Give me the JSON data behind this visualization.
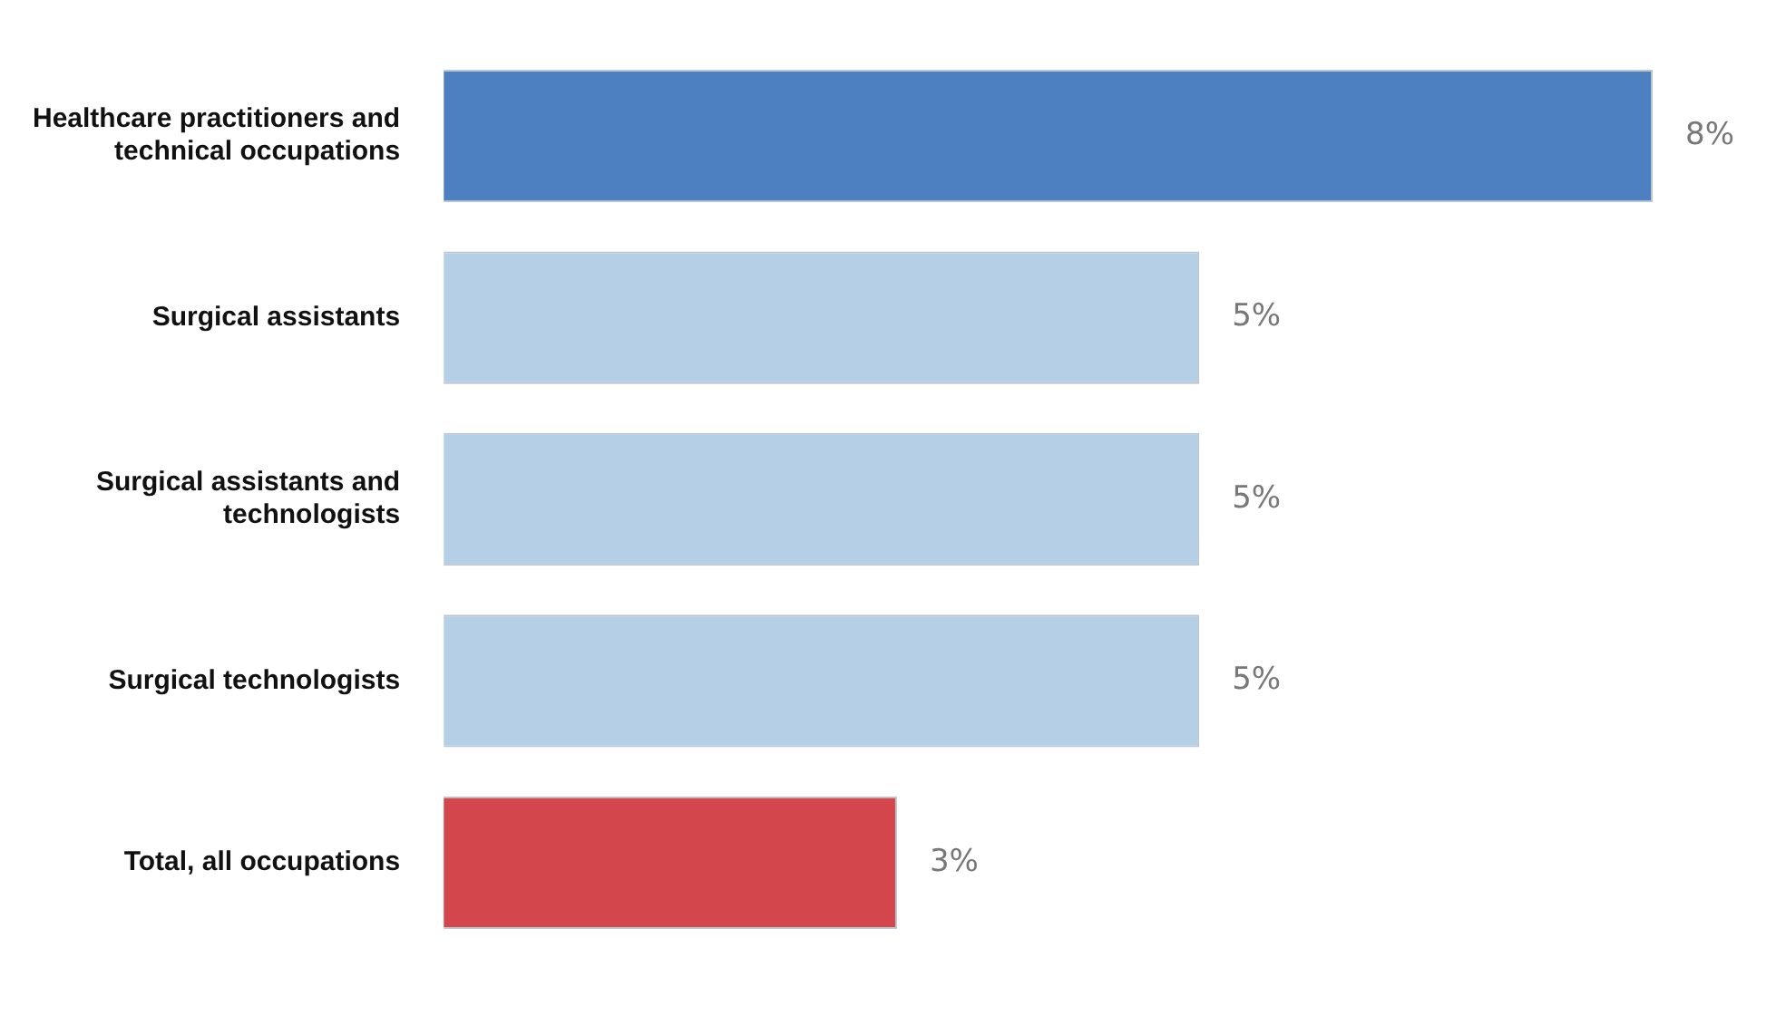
{
  "chart_data": {
    "type": "bar",
    "orientation": "horizontal",
    "categories": [
      "Healthcare practitioners and technical occupations",
      "Surgical assistants",
      "Surgical assistants and technologists",
      "Surgical technologists",
      "Total, all occupations"
    ],
    "values": [
      8,
      5,
      5,
      5,
      3
    ],
    "colors": [
      "#4c80c1",
      "#b5cfe6",
      "#b5cfe6",
      "#b5cfe6",
      "#d2464c"
    ],
    "xlim": [
      0,
      8
    ],
    "data_labels": true,
    "value_labels": [
      "8%",
      "5%",
      "5%",
      "5%",
      "3%"
    ],
    "tick_labels": "y",
    "legend": false
  }
}
